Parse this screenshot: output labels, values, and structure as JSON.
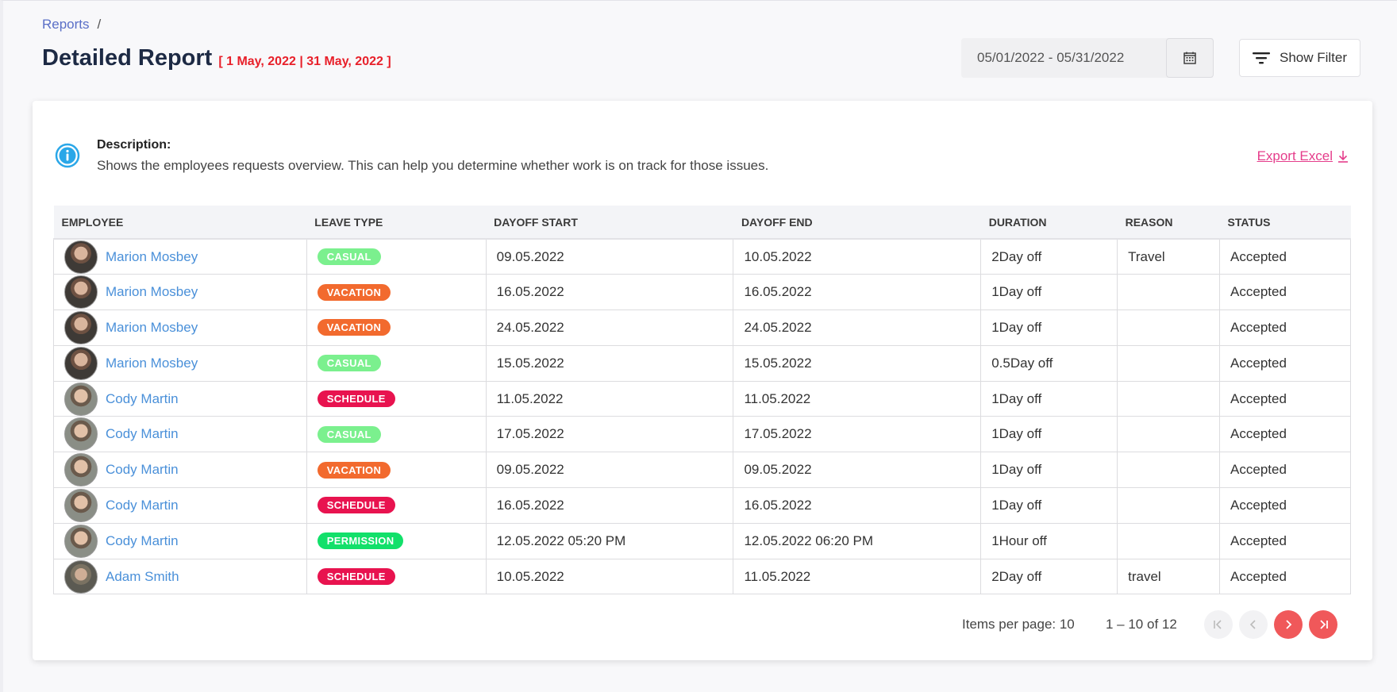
{
  "breadcrumb": {
    "root": "Reports",
    "separator": "/"
  },
  "header": {
    "title": "Detailed Report",
    "range_label": "[ 1 May, 2022 | 31 May, 2022 ]",
    "date_range_value": "05/01/2022 - 05/31/2022",
    "filter_label": "Show Filter"
  },
  "description": {
    "title": "Description:",
    "text": "Shows the employees requests overview. This can help you determine whether work is on track for those issues.",
    "export_label": "Export Excel"
  },
  "table": {
    "columns": [
      "EMPLOYEE",
      "LEAVE TYPE",
      "DAYOFF START",
      "DAYOFF END",
      "DURATION",
      "REASON",
      "STATUS"
    ],
    "rows": [
      {
        "employee": "Marion Mosbey",
        "avatar": "a",
        "type": "CASUAL",
        "start": "09.05.2022",
        "end": "10.05.2022",
        "duration": "2Day off",
        "reason": "Travel",
        "status": "Accepted"
      },
      {
        "employee": "Marion Mosbey",
        "avatar": "a",
        "type": "VACATION",
        "start": "16.05.2022",
        "end": "16.05.2022",
        "duration": "1Day off",
        "reason": "",
        "status": "Accepted"
      },
      {
        "employee": "Marion Mosbey",
        "avatar": "a",
        "type": "VACATION",
        "start": "24.05.2022",
        "end": "24.05.2022",
        "duration": "1Day off",
        "reason": "",
        "status": "Accepted"
      },
      {
        "employee": "Marion Mosbey",
        "avatar": "a",
        "type": "CASUAL",
        "start": "15.05.2022",
        "end": "15.05.2022",
        "duration": "0.5Day off",
        "reason": "",
        "status": "Accepted"
      },
      {
        "employee": "Cody Martin",
        "avatar": "b",
        "type": "SCHEDULE",
        "start": "11.05.2022",
        "end": "11.05.2022",
        "duration": "1Day off",
        "reason": "",
        "status": "Accepted"
      },
      {
        "employee": "Cody Martin",
        "avatar": "b",
        "type": "CASUAL",
        "start": "17.05.2022",
        "end": "17.05.2022",
        "duration": "1Day off",
        "reason": "",
        "status": "Accepted"
      },
      {
        "employee": "Cody Martin",
        "avatar": "b",
        "type": "VACATION",
        "start": "09.05.2022",
        "end": "09.05.2022",
        "duration": "1Day off",
        "reason": "",
        "status": "Accepted"
      },
      {
        "employee": "Cody Martin",
        "avatar": "b",
        "type": "SCHEDULE",
        "start": "16.05.2022",
        "end": "16.05.2022",
        "duration": "1Day off",
        "reason": "",
        "status": "Accepted"
      },
      {
        "employee": "Cody Martin",
        "avatar": "b",
        "type": "PERMISSION",
        "start": "12.05.2022 05:20 PM",
        "end": "12.05.2022 06:20 PM",
        "duration": "1Hour off",
        "reason": "",
        "status": "Accepted"
      },
      {
        "employee": "Adam Smith",
        "avatar": "c",
        "type": "SCHEDULE",
        "start": "10.05.2022",
        "end": "11.05.2022",
        "duration": "2Day off",
        "reason": "travel",
        "status": "Accepted"
      }
    ]
  },
  "badge_colors": {
    "CASUAL": "#7bf08e",
    "VACATION": "#f26a2e",
    "SCHEDULE": "#e8134f",
    "PERMISSION": "#12e06a"
  },
  "pagination": {
    "items_per_page_label": "Items per page: 10",
    "range_label": "1 – 10 of 12",
    "buttons": [
      "first-page",
      "previous-page",
      "next-page",
      "last-page"
    ]
  },
  "colors": {
    "accent": "#f0585a",
    "link": "#4a90d9",
    "danger_text": "#e8202a",
    "export": "#e53d8b"
  }
}
